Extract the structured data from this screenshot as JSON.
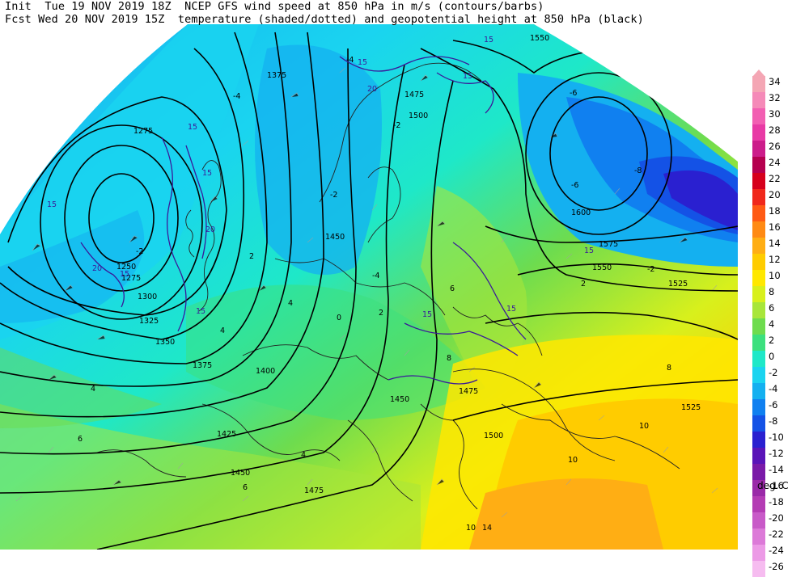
{
  "header": {
    "line1": "Init  Tue 19 NOV 2019 18Z  NCEP GFS wind speed at 850 hPa in m/s (contours/barbs)",
    "line2": "Fcst Wed 20 NOV 2019 15Z  temperature (shaded/dotted) and geopotential height at 850 hPa (black)"
  },
  "legend": {
    "units": "deg. C",
    "entries": [
      {
        "label": "34",
        "color": "#f4a6b4"
      },
      {
        "label": "32",
        "color": "#f58ab8"
      },
      {
        "label": "30",
        "color": "#f25fb2"
      },
      {
        "label": "28",
        "color": "#e83aa5"
      },
      {
        "label": "26",
        "color": "#cc1c8a"
      },
      {
        "label": "24",
        "color": "#b5004f"
      },
      {
        "label": "22",
        "color": "#d6001c"
      },
      {
        "label": "20",
        "color": "#f0281c"
      },
      {
        "label": "18",
        "color": "#ff5a14"
      },
      {
        "label": "16",
        "color": "#ff8a14"
      },
      {
        "label": "14",
        "color": "#ffae14"
      },
      {
        "label": "12",
        "color": "#ffcc00"
      },
      {
        "label": "10",
        "color": "#ffe800"
      },
      {
        "label": "8",
        "color": "#d8f01c"
      },
      {
        "label": "6",
        "color": "#a8e63a"
      },
      {
        "label": "4",
        "color": "#6edc4e"
      },
      {
        "label": "2",
        "color": "#3ce07e"
      },
      {
        "label": "0",
        "color": "#1ee8c8"
      },
      {
        "label": "-2",
        "color": "#1ad4f0"
      },
      {
        "label": "-4",
        "color": "#14b0f0"
      },
      {
        "label": "-6",
        "color": "#1080f0"
      },
      {
        "label": "-8",
        "color": "#1452e6"
      },
      {
        "label": "-10",
        "color": "#2a20d0"
      },
      {
        "label": "-12",
        "color": "#5a14b8"
      },
      {
        "label": "-14",
        "color": "#7a1aa8"
      },
      {
        "label": "-16",
        "color": "#9a2aa8"
      },
      {
        "label": "-18",
        "color": "#b43cb4"
      },
      {
        "label": "-20",
        "color": "#c85ac8"
      },
      {
        "label": "-22",
        "color": "#dc7ad8"
      },
      {
        "label": "-24",
        "color": "#ec9ae6"
      },
      {
        "label": "-26",
        "color": "#f6bcf0"
      }
    ]
  },
  "map_labels": {
    "height": [
      "1275",
      "1375",
      "1475",
      "1500",
      "1550",
      "1600",
      "1575",
      "1550",
      "1525",
      "1450",
      "1300",
      "1325",
      "1350",
      "1375",
      "1400",
      "1425",
      "1450",
      "1475",
      "1450",
      "1475",
      "1500",
      "1525",
      "1250",
      "1275"
    ],
    "wind": [
      "15",
      "15",
      "20",
      "15",
      "15",
      "15",
      "20",
      "15",
      "20",
      "15",
      "15",
      "15",
      "15",
      "15"
    ],
    "temp": [
      "-4",
      "-4",
      "-6",
      "-6",
      "-8",
      "-2",
      "-2",
      "-2",
      "0",
      "2",
      "4",
      "6",
      "6",
      "8",
      "10",
      "10",
      "10",
      "14",
      "-4",
      "2",
      "4",
      "6",
      "-2",
      "2",
      "8",
      "4",
      "4"
    ]
  }
}
